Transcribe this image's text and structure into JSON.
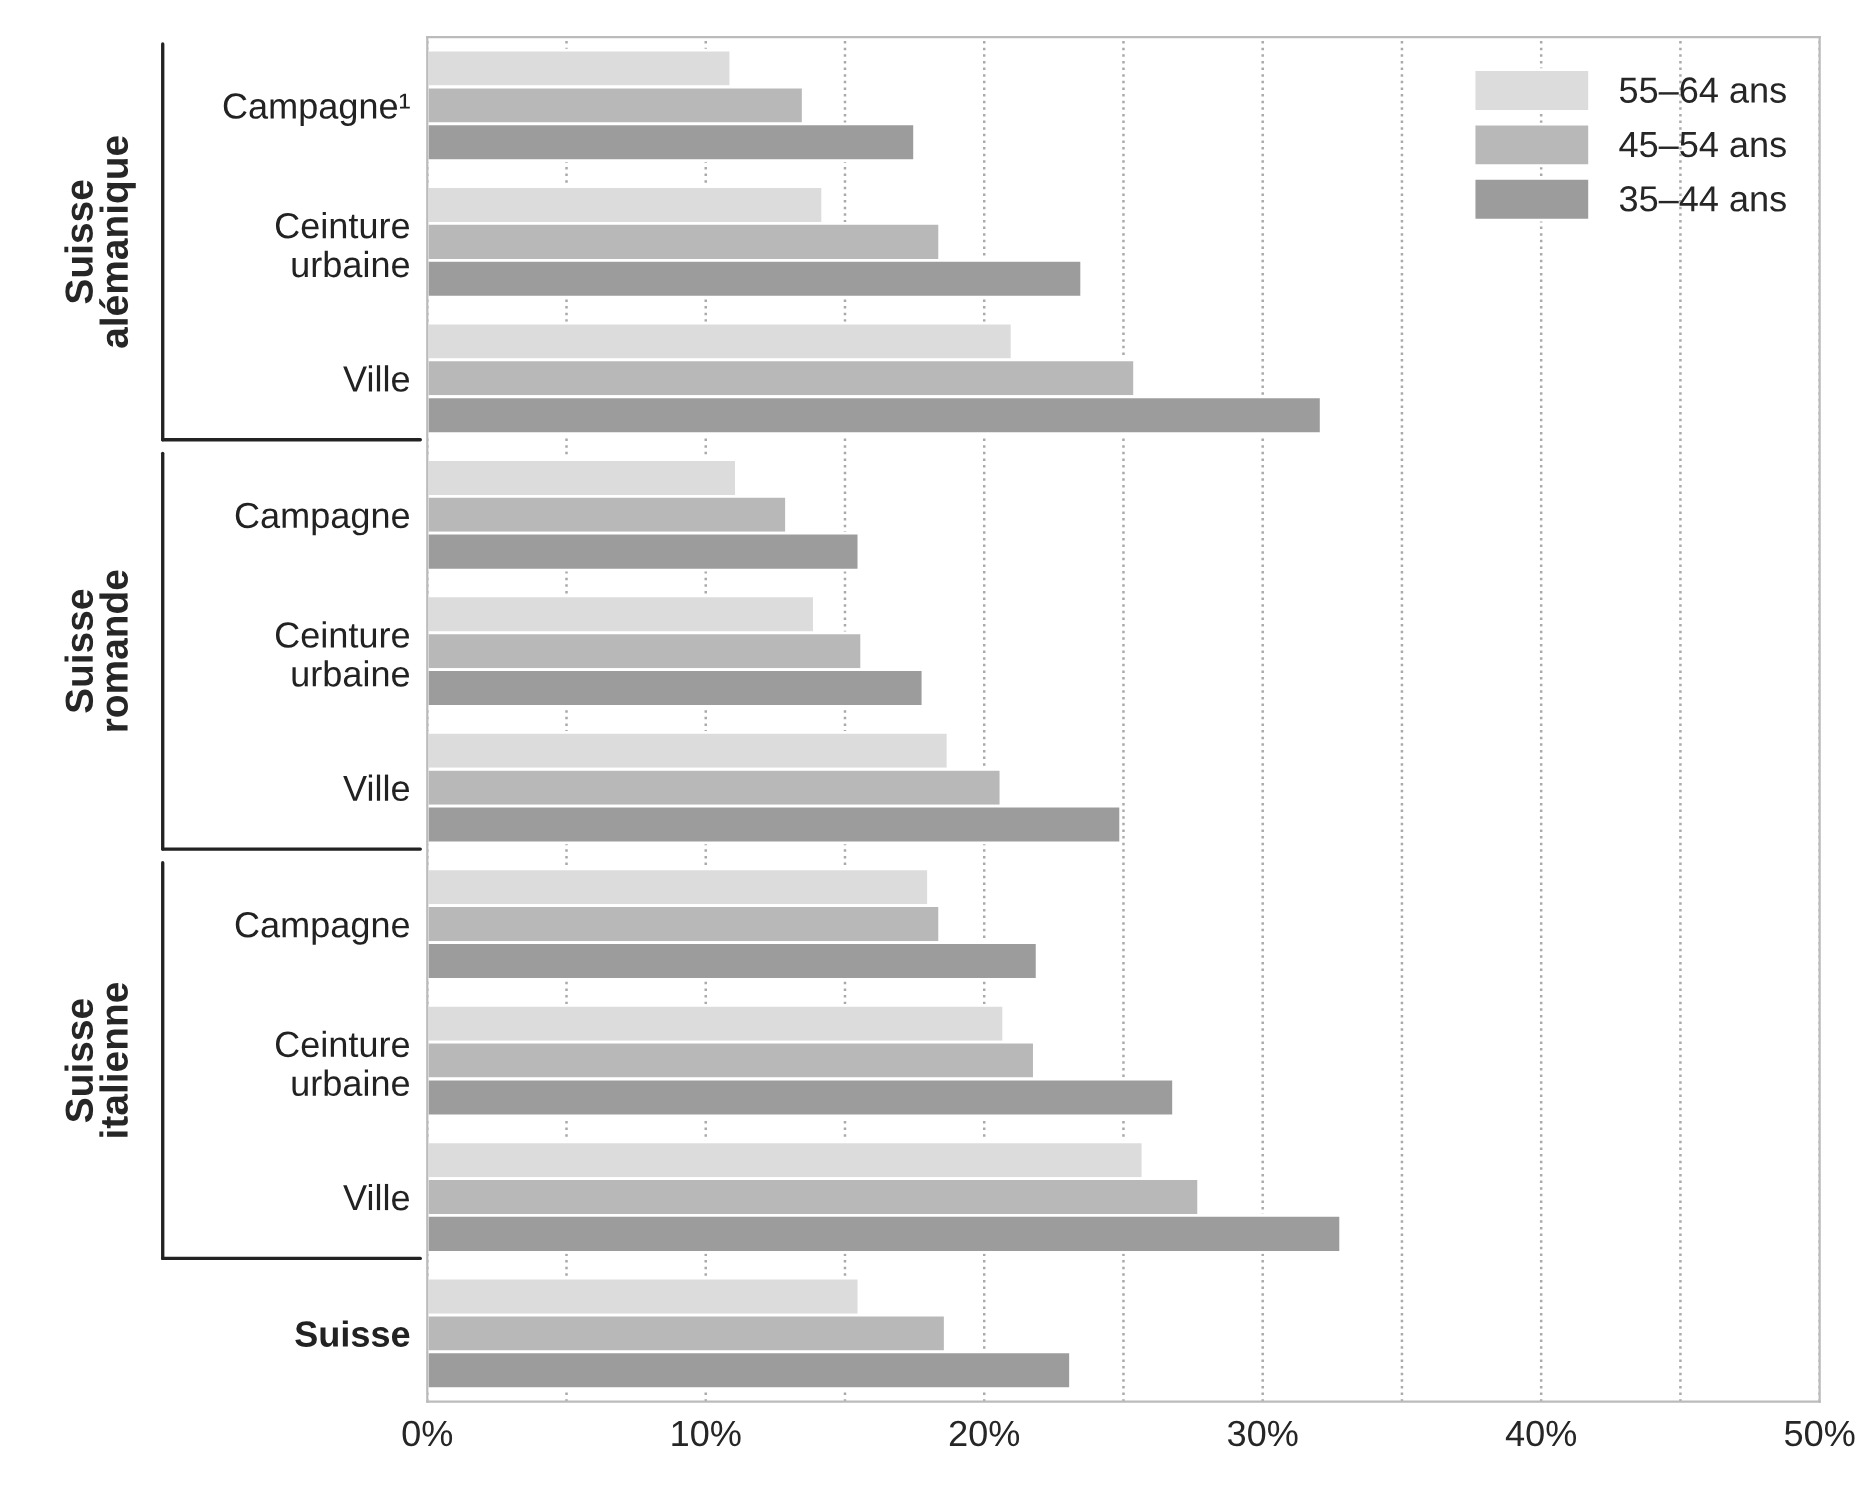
{
  "chart_data": {
    "type": "bar",
    "orientation": "horizontal",
    "categories": [
      "Campagne¹",
      "Ceinture\nurbaine",
      "Ville",
      "Campagne",
      "Ceinture\nurbaine",
      "Ville",
      "Campagne",
      "Ceinture\nurbaine",
      "Ville",
      "Suisse"
    ],
    "series": [
      {
        "name": "55–64 ans",
        "color": "#dcdcdc",
        "values": [
          10.9,
          14.2,
          21.0,
          11.1,
          13.9,
          18.7,
          18.0,
          20.7,
          25.7,
          15.5
        ]
      },
      {
        "name": "45–54 ans",
        "color": "#b8b8b8",
        "values": [
          13.5,
          18.4,
          25.4,
          12.9,
          15.6,
          20.6,
          18.4,
          21.8,
          27.7,
          18.6
        ]
      },
      {
        "name": "35–44 ans",
        "color": "#9c9c9c",
        "values": [
          17.5,
          23.5,
          32.1,
          15.5,
          17.8,
          24.9,
          21.9,
          26.8,
          32.8,
          23.1
        ]
      }
    ],
    "xlim": [
      0,
      50
    ],
    "xticks": [
      {
        "value": 0,
        "label": "0%"
      },
      {
        "value": 5,
        "label": null
      },
      {
        "value": 10,
        "label": "10%"
      },
      {
        "value": 15,
        "label": null
      },
      {
        "value": 20,
        "label": "20%"
      },
      {
        "value": 25,
        "label": null
      },
      {
        "value": 30,
        "label": "30%"
      },
      {
        "value": 35,
        "label": null
      },
      {
        "value": 40,
        "label": "40%"
      },
      {
        "value": 45,
        "label": null
      },
      {
        "value": 50,
        "label": "50%"
      }
    ],
    "annotations": [
      "Suisse\nalémanique",
      "Suisse\nromande",
      "Suisse\nitalienne"
    ],
    "grid": "x",
    "legend": "top right"
  }
}
